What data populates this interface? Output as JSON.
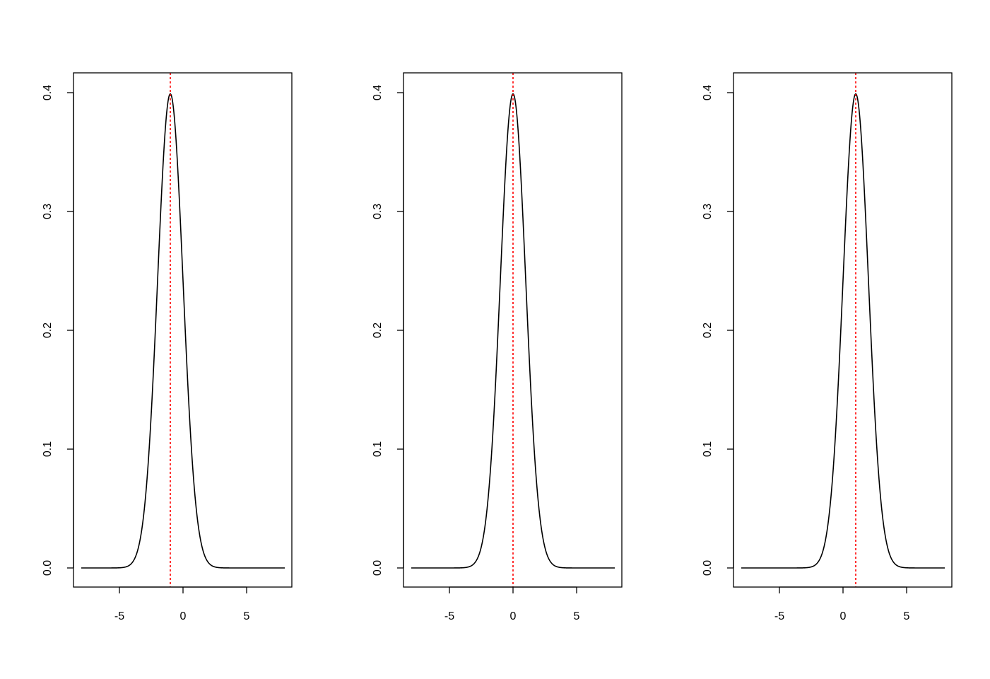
{
  "chart_data": [
    {
      "type": "line",
      "title": "",
      "xlabel": "",
      "ylabel": "",
      "xlim": [
        -8,
        8
      ],
      "ylim": [
        0,
        0.4
      ],
      "x_ticks": [
        "-5",
        "0",
        "5"
      ],
      "x_tick_values": [
        -5,
        0,
        5
      ],
      "y_ticks": [
        "0.0",
        "0.1",
        "0.2",
        "0.3",
        "0.4"
      ],
      "y_tick_values": [
        0,
        0.1,
        0.2,
        0.3,
        0.4
      ],
      "series": [
        {
          "distribution": "normal density",
          "mean": -1,
          "sd": 1,
          "x_range": [
            -8,
            8
          ],
          "color": "#000000"
        }
      ],
      "vline": {
        "x": -1,
        "color": "#ff0000",
        "style": "dotted"
      },
      "grid": false
    },
    {
      "type": "line",
      "title": "",
      "xlabel": "",
      "ylabel": "",
      "xlim": [
        -8,
        8
      ],
      "ylim": [
        0,
        0.4
      ],
      "x_ticks": [
        "-5",
        "0",
        "5"
      ],
      "x_tick_values": [
        -5,
        0,
        5
      ],
      "y_ticks": [
        "0.0",
        "0.1",
        "0.2",
        "0.3",
        "0.4"
      ],
      "y_tick_values": [
        0,
        0.1,
        0.2,
        0.3,
        0.4
      ],
      "series": [
        {
          "distribution": "normal density",
          "mean": 0,
          "sd": 1,
          "x_range": [
            -8,
            8
          ],
          "color": "#000000"
        }
      ],
      "vline": {
        "x": 0,
        "color": "#ff0000",
        "style": "dotted"
      },
      "grid": false
    },
    {
      "type": "line",
      "title": "",
      "xlabel": "",
      "ylabel": "",
      "xlim": [
        -8,
        8
      ],
      "ylim": [
        0,
        0.4
      ],
      "x_ticks": [
        "-5",
        "0",
        "5"
      ],
      "x_tick_values": [
        -5,
        0,
        5
      ],
      "y_ticks": [
        "0.0",
        "0.1",
        "0.2",
        "0.3",
        "0.4"
      ],
      "y_tick_values": [
        0,
        0.1,
        0.2,
        0.3,
        0.4
      ],
      "series": [
        {
          "distribution": "normal density",
          "mean": 1,
          "sd": 1,
          "x_range": [
            -8,
            8
          ],
          "color": "#000000"
        }
      ],
      "vline": {
        "x": 1,
        "color": "#ff0000",
        "style": "dotted"
      },
      "grid": false
    }
  ]
}
